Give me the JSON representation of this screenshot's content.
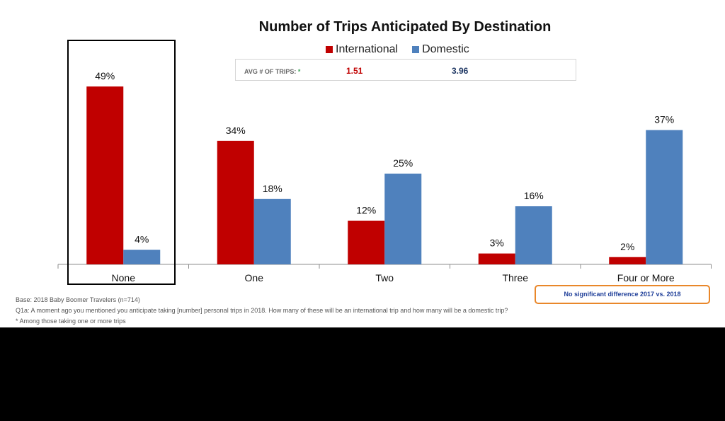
{
  "chart_data": {
    "type": "bar",
    "title": "Number of Trips Anticipated By Destination",
    "categories": [
      "None",
      "One",
      "Two",
      "Three",
      "Four or More"
    ],
    "series": [
      {
        "name": "International",
        "values": [
          49,
          34,
          12,
          3,
          2
        ],
        "labels": [
          "49%",
          "34%",
          "12%",
          "3%",
          "2%"
        ],
        "color": "#c00000"
      },
      {
        "name": "Domestic",
        "values": [
          4,
          18,
          25,
          16,
          37
        ],
        "labels": [
          "4%",
          "18%",
          "25%",
          "16%",
          "37%"
        ],
        "color": "#4f81bd"
      }
    ],
    "ylim": [
      0,
      50
    ],
    "grid": false,
    "legend": "top-center",
    "xlabel": "",
    "ylabel": ""
  },
  "avg": {
    "label": "AVG # OF TRIPS:",
    "star": "*",
    "international": "1.51",
    "domestic": "3.96",
    "international_color": "#c00000",
    "domestic_color": "#1f3864"
  },
  "notes": {
    "base": "Base:  2018 Baby Boomer Travelers (n=714)",
    "question": "Q1a:  A moment ago you mentioned you anticipate taking [number] personal trips in 2018. How many of these will be an international trip and how many will be a domestic trip?",
    "footnote": "* Among those taking one or more trips"
  },
  "significance_note": "No significant difference 2017  vs. 2018"
}
